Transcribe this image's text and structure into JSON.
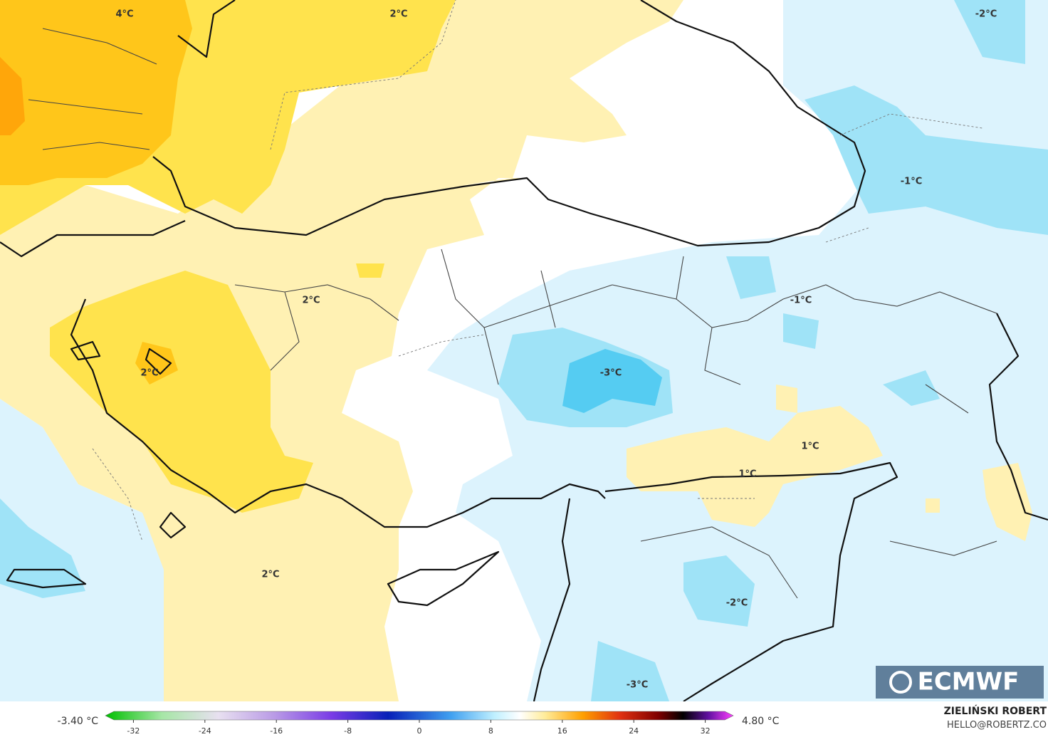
{
  "map_labels": [
    "4°C",
    "2°C",
    "-2°C",
    "-1°C",
    "2°C",
    "-3°C",
    "-1°C",
    "2°C",
    "1°C",
    "1°C",
    "2°C",
    "-2°C",
    "-3°C"
  ],
  "logo": "ECMWF",
  "colorbar": {
    "min_label": "-3.40 °C",
    "max_label": "4.80 °C",
    "ticks": [
      -32,
      -24,
      -16,
      -8,
      0,
      8,
      16,
      24,
      32
    ]
  },
  "credit": {
    "author": "ZIELIŃSKI ROBERT",
    "email": "HELLO@ROBERTZ.CO"
  }
}
